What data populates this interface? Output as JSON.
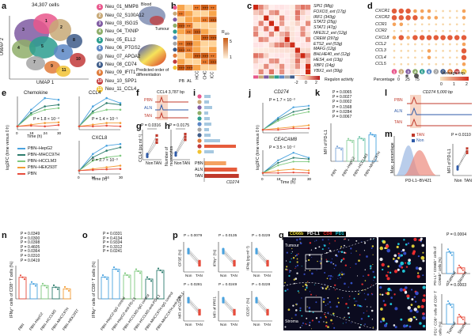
{
  "panel_labels": [
    "a",
    "b",
    "c",
    "d",
    "e",
    "f",
    "g",
    "h",
    "i",
    "j",
    "k",
    "l",
    "m",
    "n",
    "o",
    "p",
    "q"
  ],
  "panel_a": {
    "cell_count": "34,307 cells",
    "xlabel": "UMAP 1",
    "ylabel": "UMAP 2",
    "clusters": [
      {
        "id": "1",
        "name": "Neu_01_MMP8",
        "color": "#e9578c"
      },
      {
        "id": "2",
        "name": "Neu_02_S100A12",
        "color": "#c8a977"
      },
      {
        "id": "3",
        "name": "Neu_03_ISG15",
        "color": "#7f5aa2"
      },
      {
        "id": "4",
        "name": "Neu_04_TXNIP",
        "color": "#8fae6a"
      },
      {
        "id": "5",
        "name": "Neu_05_ELL2",
        "color": "#2b9d8f"
      },
      {
        "id": "6",
        "name": "Neu_06_PTGS2",
        "color": "#5c87c5"
      },
      {
        "id": "7",
        "name": "Neu_07_APOA2",
        "color": "#a6a6a6"
      },
      {
        "id": "8",
        "name": "Neu_08_CD74",
        "color": "#3e5c8a"
      },
      {
        "id": "9",
        "name": "Neu_09_IFIT1",
        "color": "#e07b39"
      },
      {
        "id": "10",
        "name": "Neu_10_SPP1",
        "color": "#c23a3a"
      },
      {
        "id": "11",
        "name": "Neu_11_CCL4",
        "color": "#f1c232"
      }
    ],
    "inset_labels": [
      "Blood",
      "Tumour"
    ],
    "order_label": "Predicted order of differentiation"
  },
  "panel_b": {
    "columns": [
      "PB",
      "AL",
      "HCC",
      "CHC",
      "ICC"
    ],
    "legend_title": "R",
    "legend_sub": "o/e",
    "legend_ticks": [
      "1",
      "5"
    ],
    "marks": [
      "+",
      "++",
      "+++"
    ]
  },
  "panel_c": {
    "genes": [
      "SPI1 (98g)",
      "FOXO3_ext (17g)",
      "IRF1 (343g)",
      "STAT2 (25g)",
      "STAT1 (47g)",
      "NFE2L2_ext (12g)",
      "CREM (297g)",
      "ETS2_ext (53g)",
      "MAFG (12g)",
      "BHLHE40_ext (12g)",
      "HES4_ext (13g)",
      "XBP1 (14g)",
      "YBX1_ext (39g)"
    ],
    "legend": "Regulon activity",
    "ticks": [
      "-2",
      "0",
      "2"
    ]
  },
  "panel_d": {
    "genes": [
      "CXCR1",
      "CXCR2",
      "CCR1",
      "CCR2",
      "CXCL8",
      "CCL2",
      "CCL3",
      "CCL4",
      "CCL5"
    ],
    "percentage_label": "Percentage",
    "percentage_ticks": [
      "0",
      "25",
      "75"
    ],
    "average_label": "Average exp.",
    "average_ticks": [
      "0",
      "1",
      "2"
    ]
  },
  "panel_e": {
    "ylabel": "log2FC (time versus 0 h)",
    "xlabel": "Time (h)",
    "plots": [
      {
        "title": "Chemokine",
        "pval": "P = 1.8 × 10⁻⁴"
      },
      {
        "title": "CCL4",
        "pval": "P = 1.4 × 10⁻⁵"
      },
      {
        "title": "CXCL8",
        "pval": "P = 2.7 × 10⁻³"
      }
    ],
    "xticks": [
      "0",
      "18",
      "24",
      "30"
    ],
    "legend": [
      {
        "label": "PBN–HepG2",
        "color": "#4aa3df"
      },
      {
        "label": "PBN–MHCC97H",
        "color": "#2e7d6e"
      },
      {
        "label": "PBN–HCCLM3",
        "color": "#7fc97f"
      },
      {
        "label": "PBN–HEK293T",
        "color": "#f39c34"
      },
      {
        "label": "PBN",
        "color": "#e74c3c"
      }
    ]
  },
  "panel_f": {
    "title": "CCL4 3,787 bp",
    "rows": [
      "PBN",
      "ALN",
      "TAN"
    ]
  },
  "panel_g": {
    "pval": "P = 0.0316",
    "ylabel": "CCL4 (pg ml⁻¹)",
    "xcats": [
      "Non",
      "TAN"
    ]
  },
  "panel_h": {
    "pval": "P = 0.0175",
    "ylabel": "Number of monocytes",
    "xcats": [
      "Non",
      "TAN"
    ]
  },
  "panel_i": {
    "xlabel": "CD274",
    "rows": [
      "PBN",
      "ALN",
      "TAN"
    ]
  },
  "panel_j": {
    "ylabel": "log2FC (time versus 0 h)",
    "xlabel": "Time (h)",
    "plots": [
      {
        "title": "CD274",
        "pval": "P = 1.7 × 10⁻³"
      },
      {
        "title": "CEACAM8",
        "pval": "P = 3.5 × 10⁻²"
      }
    ],
    "xticks": [
      "0",
      "18",
      "24",
      "30"
    ]
  },
  "panel_k": {
    "ylabel": "MFI of PD-L1",
    "pvals": [
      "P = 0.0065",
      "P = 0.0027",
      "P = 0.0002",
      "P = 0.1568",
      "P = 0.0284",
      "P = 0.0067"
    ],
    "xcats": [
      "PBN",
      "PBN–HepG2",
      "PBN–HCCLM3",
      "PBN–MHCC97H"
    ]
  },
  "panel_l": {
    "title": "CD274 5,000 bp",
    "rows": [
      "PBN",
      "ALN",
      "TAN"
    ]
  },
  "panel_m": {
    "legend": [
      "TAN",
      "Non"
    ],
    "pval": "P = 0.0110",
    "xlabel": "PD-L1–BV421",
    "ylabel": "Max. percentage",
    "ylabel2": "MFI of PD-L1",
    "xcats": [
      "Non",
      "TAN"
    ]
  },
  "panel_n": {
    "ylabel": "IFNγ⁺ cells of CD8⁺ T cells (%)",
    "pvals": [
      "P = 0.0349",
      "P = 0.0300",
      "P = 0.0398",
      "P = 0.4605",
      "P = 0.0364",
      "P = 0.0310",
      "P = 0.0419"
    ],
    "xcats": [
      "PBN",
      "PBN–HepG2",
      "PBN–HCCLM3",
      "PBN–MHCC97H",
      "PBN–HEK293T"
    ]
  },
  "panel_o": {
    "ylabel": "IFNγ⁺ cells of CD8⁺ T cells (%)",
    "pvals": [
      "P = 0.0331",
      "P = 0.4134",
      "P = 0.9334",
      "P = 0.3312",
      "P = 0.0241"
    ],
    "xcats": [
      "PBN–HepG2-IgG control",
      "PBN–HepG2-anti-PD-L1",
      "PBN–HCCLM3-IgG control",
      "PBN–HCCLM3-anti-PD-L1",
      "PBN–MHCC97H-IgG control",
      "PBN–MHCC97H-anti-PD-L1"
    ]
  },
  "panel_p": {
    "plots": [
      {
        "ylabel": "CFSE (%)",
        "pval": "P = 0.0079"
      },
      {
        "ylabel": "IFNγ⁺ (%)",
        "pval": "P = 0.0135"
      },
      {
        "ylabel": "IFNγ (pg ml⁻¹)",
        "pval": "P = 0.0229"
      },
      {
        "ylabel": "MFI of GZMB",
        "pval": "P = 0.0281"
      },
      {
        "ylabel": "MFI of PRF1",
        "pval": "P = 0.0249"
      },
      {
        "ylabel": "CD25⁺ (%)",
        "pval": "P = 0.0228"
      }
    ],
    "xcats": [
      "Non",
      "TAN"
    ]
  },
  "panel_q": {
    "channels": [
      {
        "label": "CD66b",
        "color": "#f3e13a"
      },
      {
        "label": "PD-L1",
        "color": "#ffffff"
      },
      {
        "label": "CD8",
        "color": "#ff3030"
      },
      {
        "label": "PD1",
        "color": "#21d6e8"
      }
    ],
    "regions": [
      "Tumour",
      "Stroma"
    ],
    "pvals": [
      "P = 0.0004",
      "P = 0.0003"
    ],
    "ylabel1": "PD-L1⁺ CD66b⁺ cells of CD66b⁺ cells (%)",
    "ylabel2": "PD1⁺ CD8⁺ cells of CD8⁺ T cells (%)",
    "xcats": [
      "Tumour",
      "Stroma"
    ]
  }
}
